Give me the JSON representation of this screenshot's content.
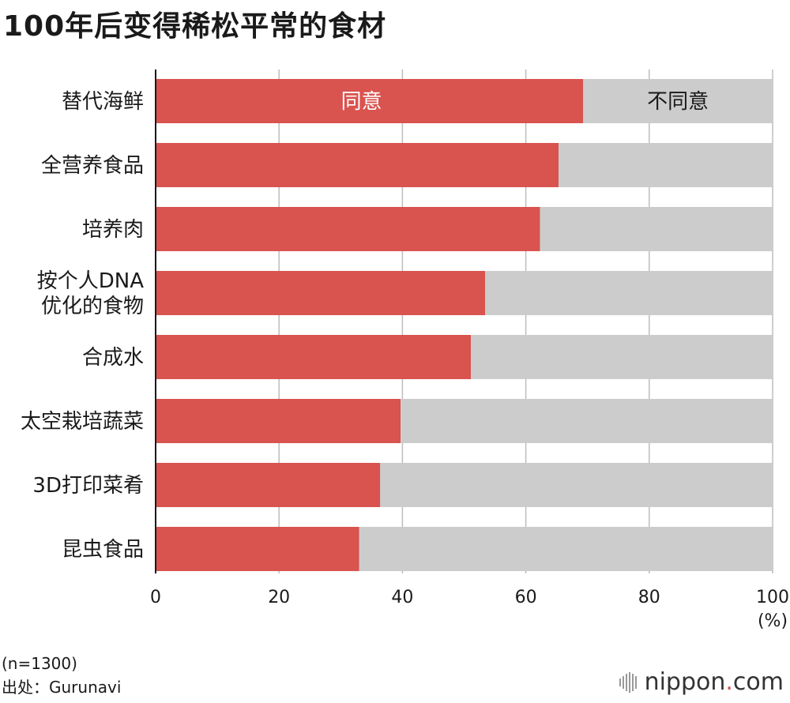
{
  "title": "100年后变得稀松平常的食材",
  "chart_data": {
    "type": "bar",
    "orientation": "horizontal",
    "stacked": true,
    "categories": [
      [
        "替代海鲜"
      ],
      [
        "全营养食品"
      ],
      [
        "培养肉"
      ],
      [
        "按个人DNA",
        "优化的食物"
      ],
      [
        "合成水"
      ],
      [
        "太空栽培蔬菜"
      ],
      [
        "3D打印菜肴"
      ],
      [
        "昆虫食品"
      ]
    ],
    "series": [
      {
        "name": "同意",
        "color": "#d9534f",
        "values": [
          69.3,
          65.3,
          62.3,
          53.4,
          51.1,
          39.7,
          36.4,
          33.0
        ]
      },
      {
        "name": "不同意",
        "color": "#cccccc",
        "values": [
          30.7,
          34.7,
          37.7,
          46.6,
          48.9,
          60.3,
          63.6,
          67.0
        ]
      }
    ],
    "xlim": [
      0,
      100
    ],
    "xticks": [
      0,
      20,
      40,
      60,
      80,
      100
    ],
    "xunit": "(%)",
    "grid": true
  },
  "notes": {
    "sample": "(n=1300)",
    "source": "出处：Gurunavi"
  },
  "logo": {
    "name": "nippon",
    "dot": ".",
    "suffix": "com"
  }
}
